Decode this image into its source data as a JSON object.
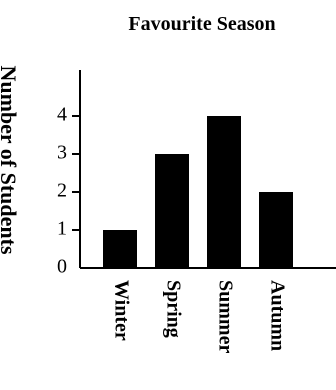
{
  "chart_data": {
    "type": "bar",
    "title": "Favourite Season",
    "xlabel": "",
    "ylabel": "Number of Students",
    "categories": [
      "Winter",
      "Spring",
      "Summer",
      "Autumn"
    ],
    "values": [
      1,
      3,
      4,
      2
    ],
    "ylim": [
      0,
      5
    ],
    "yticks": [
      "0",
      "1",
      "2",
      "3",
      "4"
    ],
    "grid": false,
    "legend": "none",
    "colors": {
      "bar": "#000000",
      "axis": "#000000",
      "background": "#ffffff"
    }
  }
}
